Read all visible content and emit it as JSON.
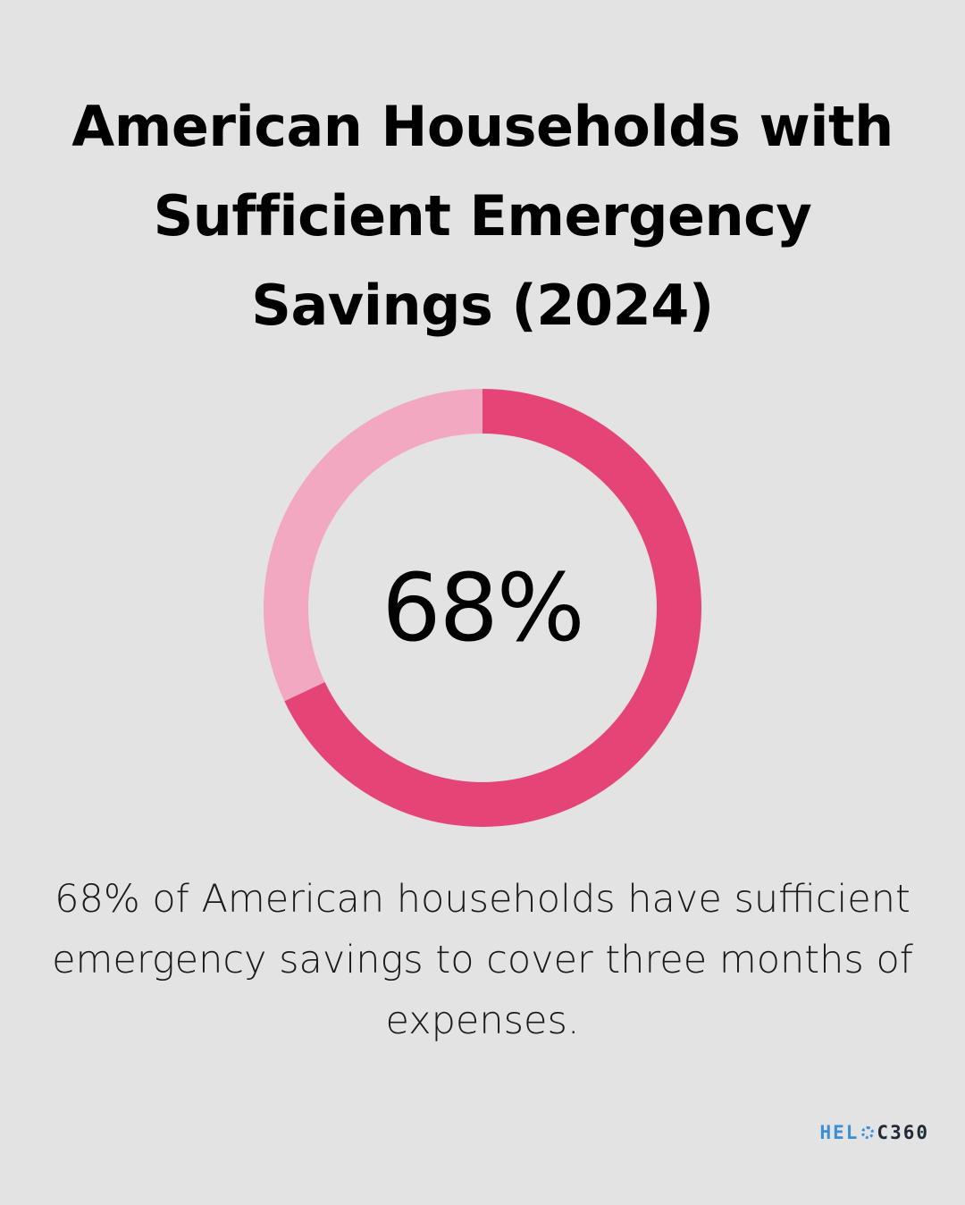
{
  "title": "American Households with Sufficient Emergency Savings (2024)",
  "chart_data": {
    "type": "pie",
    "variant": "donut",
    "center_label": "68%",
    "slices": [
      {
        "value": 68,
        "color": "#e44576"
      },
      {
        "value": 32,
        "color": "#f1a8c0"
      }
    ]
  },
  "description": "68% of American households have sufficient emergency savings to cover three months of expenses.",
  "logo": {
    "part_a": "HEL",
    "part_b": "C360"
  }
}
